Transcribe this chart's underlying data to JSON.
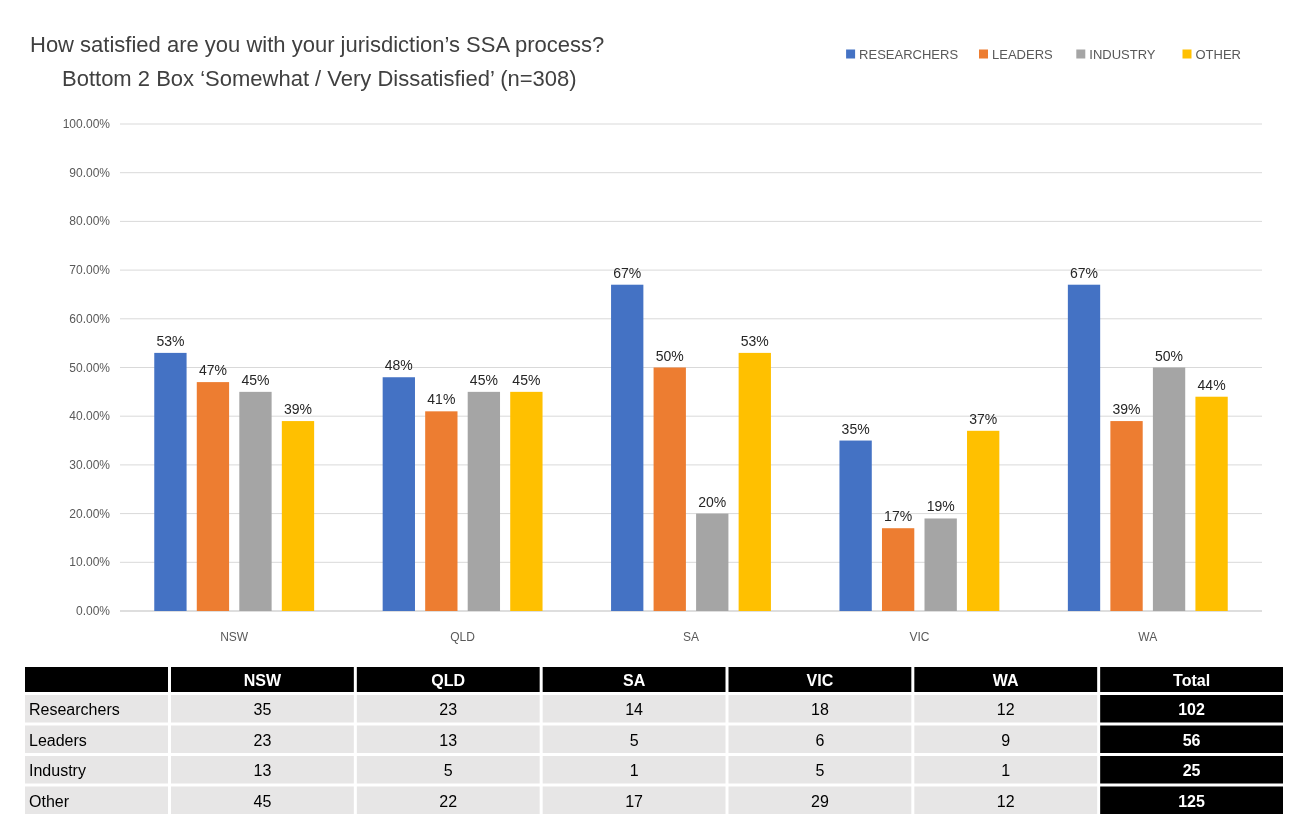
{
  "chart_data": [
    {
      "type": "bar",
      "title": "How satisfied are you with your jurisdiction’s SSA process?",
      "subtitle": "Bottom 2 Box ‘Somewhat / Very Dissatisfied’ (n=308)",
      "categories": [
        "NSW",
        "QLD",
        "SA",
        "VIC",
        "WA"
      ],
      "series": [
        {
          "name": "RESEARCHERS",
          "color": "#4472c4",
          "values": [
            53,
            48,
            67,
            35,
            67
          ],
          "value_labels": [
            "53%",
            "48%",
            "67%",
            "35%",
            "67%"
          ]
        },
        {
          "name": "LEADERS",
          "color": "#ed7d31",
          "values": [
            47,
            41,
            50,
            17,
            39
          ],
          "value_labels": [
            "47%",
            "41%",
            "50%",
            "17%",
            "39%"
          ]
        },
        {
          "name": "INDUSTRY",
          "color": "#a5a5a5",
          "values": [
            45,
            45,
            20,
            19,
            50
          ],
          "value_labels": [
            "45%",
            "45%",
            "20%",
            "19%",
            "50%"
          ]
        },
        {
          "name": "OTHER",
          "color": "#ffc000",
          "values": [
            39,
            45,
            53,
            37,
            44
          ],
          "value_labels": [
            "39%",
            "45%",
            "53%",
            "37%",
            "44%"
          ]
        }
      ],
      "ylim": [
        0,
        100
      ],
      "yticks": [
        {
          "value": 0,
          "label": "0.00%"
        },
        {
          "value": 10,
          "label": "10.00%"
        },
        {
          "value": 20,
          "label": "20.00%"
        },
        {
          "value": 30,
          "label": "30.00%"
        },
        {
          "value": 40,
          "label": "40.00%"
        },
        {
          "value": 50,
          "label": "50.00%"
        },
        {
          "value": 60,
          "label": "60.00%"
        },
        {
          "value": 70,
          "label": "70.00%"
        },
        {
          "value": 80,
          "label": "80.00%"
        },
        {
          "value": 90,
          "label": "90.00%"
        },
        {
          "value": 100,
          "label": "100.00%"
        }
      ],
      "grid": "y",
      "legend": "top right"
    },
    {
      "type": "heatmap",
      "categories": [
        "NSW",
        "QLD",
        "SA",
        "VIC",
        "WA",
        "Total"
      ],
      "y_categories": [
        "Researchers",
        "Leaders",
        "Industry",
        "Other"
      ],
      "cells": [
        [
          35,
          23,
          14,
          18,
          12,
          102
        ],
        [
          23,
          13,
          5,
          6,
          9,
          56
        ],
        [
          13,
          5,
          1,
          5,
          1,
          25
        ],
        [
          45,
          22,
          17,
          29,
          12,
          125
        ]
      ],
      "colors": [
        "#e7e6e6",
        "#e7e6e6",
        "#e7e6e6",
        "#e7e6e6",
        "#e7e6e6",
        "#000000"
      ],
      "data_labels": true
    }
  ]
}
